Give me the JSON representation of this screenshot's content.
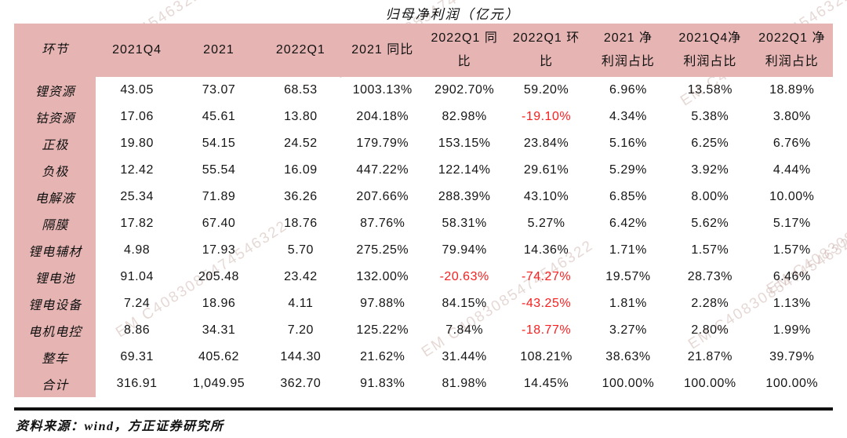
{
  "title": "归母净利润（亿元）",
  "watermark": {
    "text": "EM C4083085474546322"
  },
  "colors": {
    "header_bg": "#e6b5b3",
    "negative": "#f91f1f",
    "page_bg": "#ffffff",
    "rule": "#101010"
  },
  "table": {
    "headers": [
      "环节",
      "2021Q4",
      "2021",
      "2022Q1",
      "2021 同比",
      "2022Q1 同\n比",
      "2022Q1 环\n比",
      "2021  净\n利润占比",
      "2021Q4净\n利润占比",
      "2022Q1 净\n利润占比"
    ],
    "rows": [
      {
        "label": "锂资源",
        "values": [
          "43.05",
          "73.07",
          "68.53",
          "1003.13%",
          "2902.70%",
          "59.20%",
          "6.96%",
          "13.58%",
          "18.89%"
        ]
      },
      {
        "label": "钴资源",
        "values": [
          "17.06",
          "45.61",
          "13.80",
          "204.18%",
          "82.98%",
          "-19.10%",
          "4.34%",
          "5.38%",
          "3.80%"
        ]
      },
      {
        "label": "正极",
        "values": [
          "19.80",
          "54.15",
          "24.52",
          "179.79%",
          "153.15%",
          "23.84%",
          "5.16%",
          "6.25%",
          "6.76%"
        ]
      },
      {
        "label": "负极",
        "values": [
          "12.42",
          "55.54",
          "16.09",
          "447.22%",
          "122.14%",
          "29.61%",
          "5.29%",
          "3.92%",
          "4.44%"
        ]
      },
      {
        "label": "电解液",
        "values": [
          "25.34",
          "71.89",
          "36.26",
          "207.66%",
          "288.39%",
          "43.10%",
          "6.85%",
          "8.00%",
          "10.00%"
        ]
      },
      {
        "label": "隔膜",
        "values": [
          "17.82",
          "67.40",
          "18.76",
          "87.76%",
          "58.31%",
          "5.27%",
          "6.42%",
          "5.62%",
          "5.17%"
        ]
      },
      {
        "label": "锂电辅材",
        "values": [
          "4.98",
          "17.93",
          "5.70",
          "275.25%",
          "79.94%",
          "14.36%",
          "1.71%",
          "1.57%",
          "1.57%"
        ]
      },
      {
        "label": "锂电池",
        "values": [
          "91.04",
          "205.48",
          "23.42",
          "132.00%",
          "-20.63%",
          "-74.27%",
          "19.57%",
          "28.73%",
          "6.46%"
        ]
      },
      {
        "label": "锂电设备",
        "values": [
          "7.24",
          "18.96",
          "4.11",
          "97.88%",
          "84.15%",
          "-43.25%",
          "1.81%",
          "2.28%",
          "1.13%"
        ]
      },
      {
        "label": "电机电控",
        "values": [
          "8.86",
          "34.31",
          "7.20",
          "125.22%",
          "7.84%",
          "-18.77%",
          "3.27%",
          "2.80%",
          "1.99%"
        ]
      },
      {
        "label": "整车",
        "values": [
          "69.31",
          "405.62",
          "144.30",
          "21.62%",
          "31.44%",
          "108.21%",
          "38.63%",
          "21.87%",
          "39.79%"
        ]
      },
      {
        "label": "合计",
        "values": [
          "316.91",
          "1,049.95",
          "362.70",
          "91.83%",
          "81.98%",
          "14.45%",
          "100.00%",
          "100.00%",
          "100.00%"
        ]
      }
    ]
  },
  "footer": {
    "source": "资料来源：wind，方正证券研究所"
  }
}
